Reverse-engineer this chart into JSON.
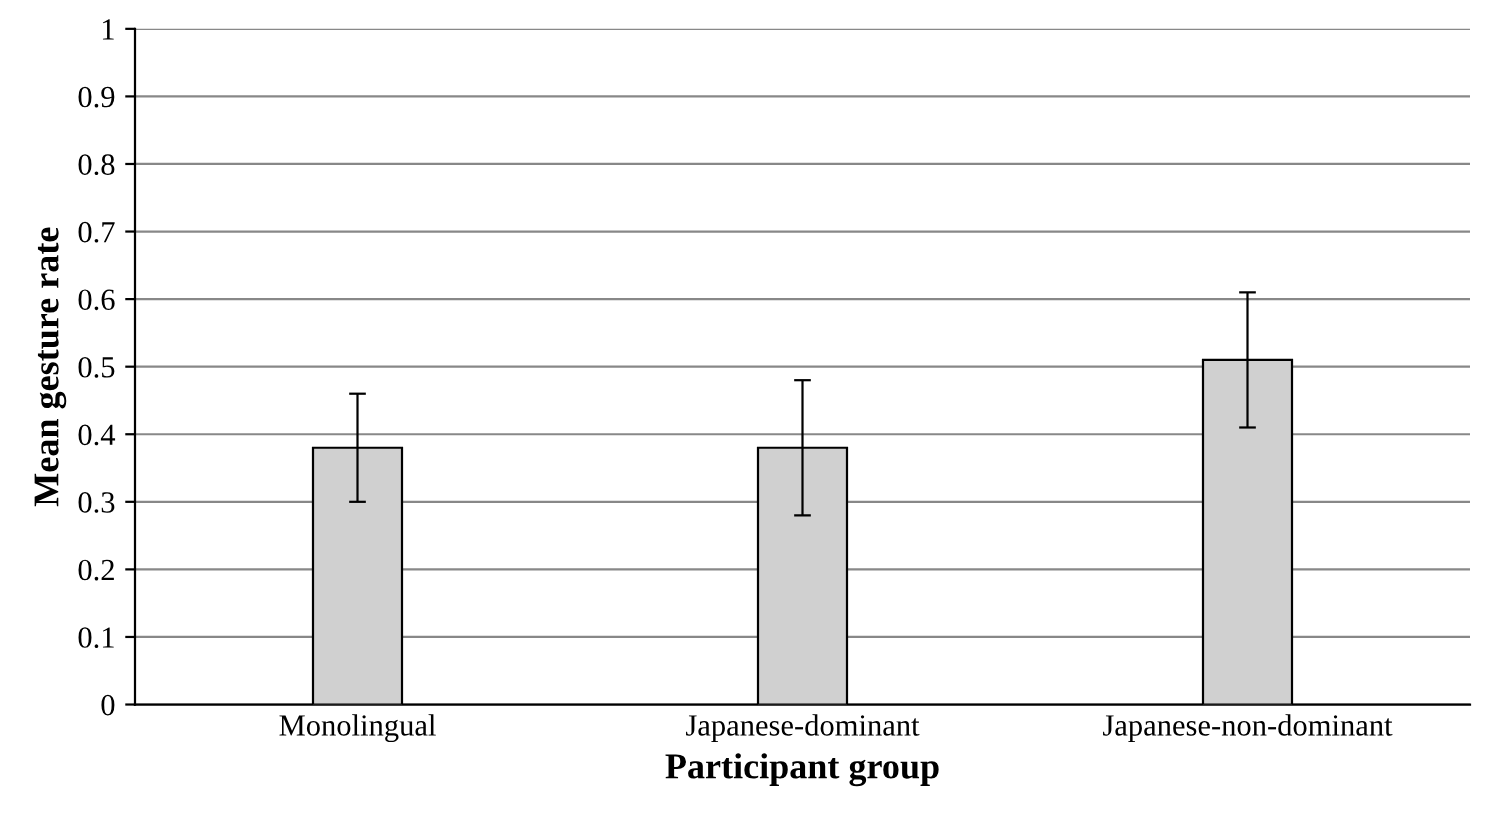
{
  "chart_data": {
    "type": "bar",
    "xlabel": "Participant group",
    "ylabel": "Mean gesture rate",
    "categories": [
      "Monolingual",
      "Japanese-dominant",
      "Japanese-non-dominant"
    ],
    "values": [
      0.38,
      0.38,
      0.51
    ],
    "errors": [
      0.08,
      0.1,
      0.1
    ],
    "color": "#d0d0d0",
    "ylim": [
      0,
      1
    ],
    "yticks": [
      0,
      0.1,
      0.2,
      0.3,
      0.4,
      0.5,
      0.6,
      0.7,
      0.8,
      0.9,
      1
    ],
    "grid": "y"
  }
}
